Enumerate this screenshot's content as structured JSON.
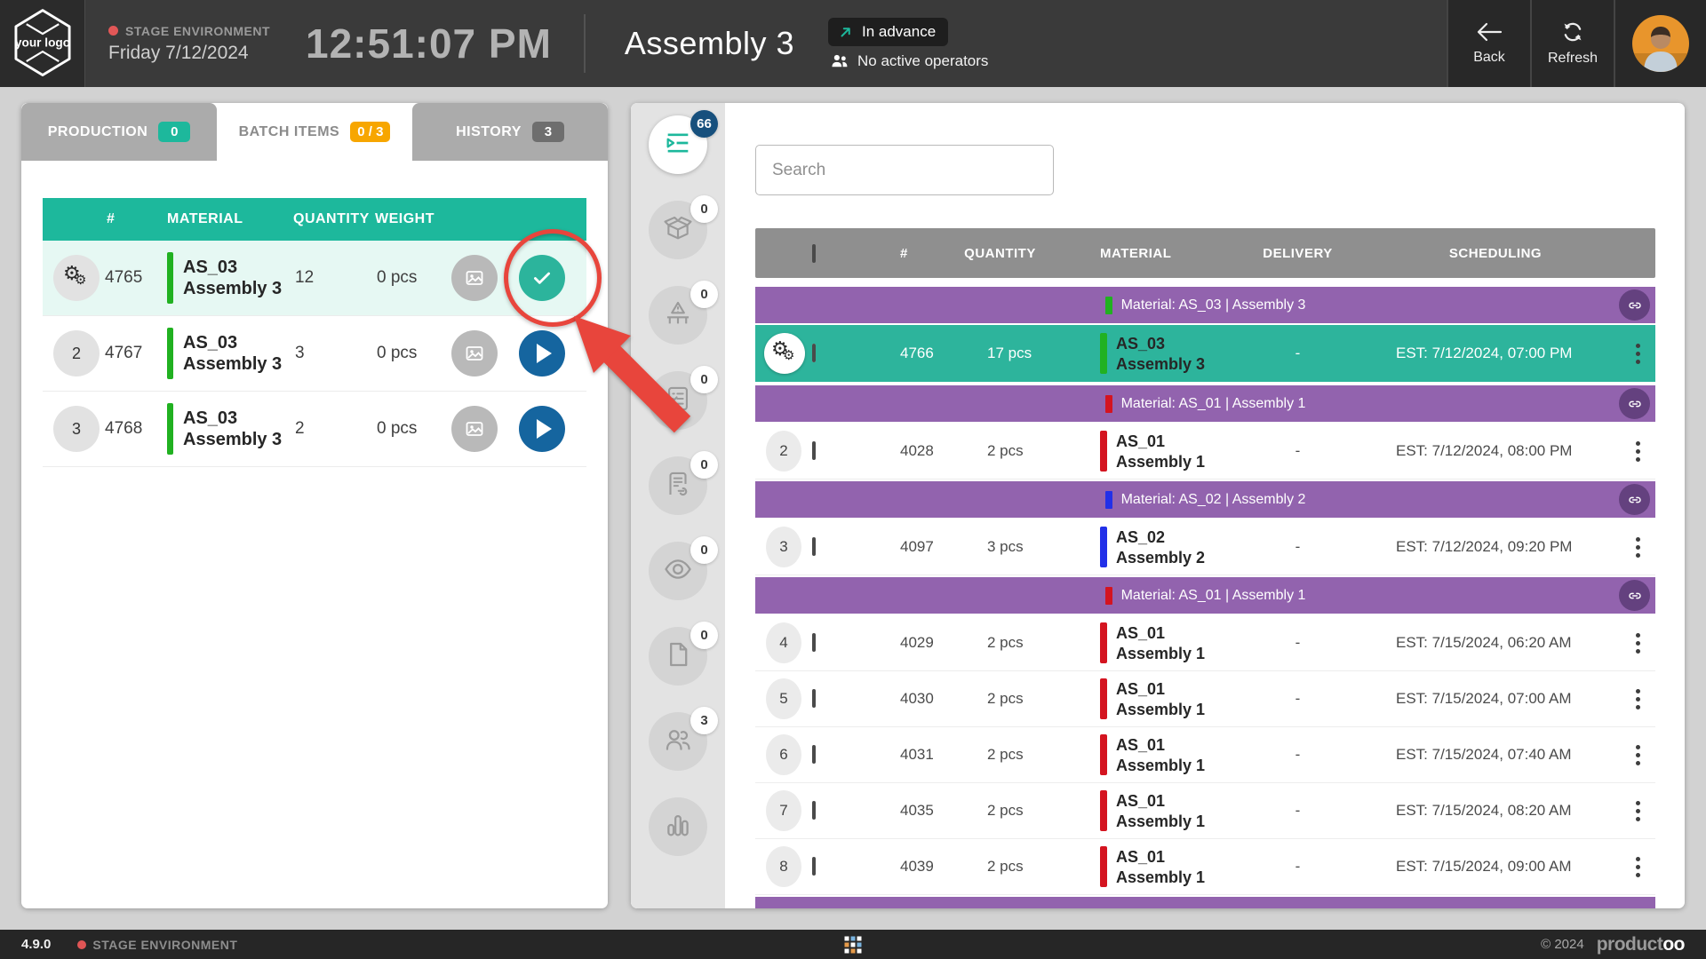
{
  "header": {
    "logo_text": "your logo",
    "environment_label": "STAGE ENVIRONMENT",
    "date": "Friday 7/12/2024",
    "clock": "12:51:07 PM",
    "workplace_title": "Assembly 3",
    "status_badge": "In advance",
    "operators_status": "No active operators",
    "back_label": "Back",
    "refresh_label": "Refresh"
  },
  "colors": {
    "accent_teal": "#1db89c",
    "selected_row_teal": "#2db49c",
    "group_purple": "#9263ae",
    "tab_orange": "#f7a600",
    "badge_dark_blue": "#17507d",
    "play_blue": "#15659f",
    "annotation_red": "#e8453c"
  },
  "left_panel": {
    "tabs": [
      {
        "label": "PRODUCTION",
        "badge": "0",
        "badge_color": "#1db89c",
        "active": false
      },
      {
        "label": "BATCH ITEMS",
        "badge": "0 / 3",
        "badge_color": "#f7a600",
        "active": true
      },
      {
        "label": "HISTORY",
        "badge": "3",
        "badge_color": "#6e6e6e",
        "active": false
      }
    ],
    "columns": {
      "id": "#",
      "material": "MATERIAL",
      "quantity": "QUANTITY",
      "weight": "WEIGHT"
    },
    "rows": [
      {
        "badge": "gears",
        "index": "",
        "id": "4765",
        "material_code": "AS_03",
        "material_name": "Assembly 3",
        "bar_color": "#21b121",
        "quantity": "12",
        "weight": "0 pcs",
        "action": "check",
        "highlight": true
      },
      {
        "badge": "number",
        "index": "2",
        "id": "4767",
        "material_code": "AS_03",
        "material_name": "Assembly 3",
        "bar_color": "#21b121",
        "quantity": "3",
        "weight": "0 pcs",
        "action": "play",
        "highlight": false
      },
      {
        "badge": "number",
        "index": "3",
        "id": "4768",
        "material_code": "AS_03",
        "material_name": "Assembly 3",
        "bar_color": "#21b121",
        "quantity": "2",
        "weight": "0 pcs",
        "action": "play",
        "highlight": false
      }
    ]
  },
  "rail": {
    "items": [
      {
        "name": "work-queue",
        "icon": "queue",
        "badge": "66",
        "badge_style": "blue",
        "active": true
      },
      {
        "name": "packaging",
        "icon": "box",
        "badge": "0",
        "badge_style": "white",
        "active": false
      },
      {
        "name": "pallet-issues",
        "icon": "pallet",
        "badge": "0",
        "badge_style": "white",
        "active": false
      },
      {
        "name": "checklists",
        "icon": "checklist",
        "badge": "0",
        "badge_style": "white",
        "active": false
      },
      {
        "name": "document-signoff",
        "icon": "docsign",
        "badge": "0",
        "badge_style": "white",
        "active": false
      },
      {
        "name": "inspection",
        "icon": "eye",
        "badge": "0",
        "badge_style": "white",
        "active": false
      },
      {
        "name": "documents",
        "icon": "file",
        "badge": "0",
        "badge_style": "white",
        "active": false
      },
      {
        "name": "operators",
        "icon": "people",
        "badge": "3",
        "badge_style": "white",
        "active": false
      },
      {
        "name": "statistics",
        "icon": "chart",
        "badge": null,
        "badge_style": null,
        "active": false
      }
    ]
  },
  "right_panel": {
    "search_placeholder": "Search",
    "columns": {
      "id": "#",
      "quantity": "QUANTITY",
      "material": "MATERIAL",
      "delivery": "DELIVERY",
      "scheduling": "SCHEDULING"
    },
    "items": [
      {
        "type": "group",
        "label": "Material: AS_03 | Assembly 3",
        "bar_color": "#21b121"
      },
      {
        "type": "row",
        "selected": true,
        "badge": "gears",
        "index": "",
        "id": "4766",
        "quantity": "17 pcs",
        "material_code": "AS_03",
        "material_name": "Assembly 3",
        "bar_color": "#21b121",
        "delivery": "-",
        "scheduling": "EST: 7/12/2024, 07:00 PM"
      },
      {
        "type": "group",
        "label": "Material: AS_01 | Assembly 1",
        "bar_color": "#d41420"
      },
      {
        "type": "row",
        "selected": false,
        "badge": "number",
        "index": "2",
        "id": "4028",
        "quantity": "2 pcs",
        "material_code": "AS_01",
        "material_name": "Assembly 1",
        "bar_color": "#d41420",
        "delivery": "-",
        "scheduling": "EST: 7/12/2024, 08:00 PM"
      },
      {
        "type": "group",
        "label": "Material: AS_02 | Assembly 2",
        "bar_color": "#2230e8"
      },
      {
        "type": "row",
        "selected": false,
        "badge": "number",
        "index": "3",
        "id": "4097",
        "quantity": "3 pcs",
        "material_code": "AS_02",
        "material_name": "Assembly 2",
        "bar_color": "#2230e8",
        "delivery": "-",
        "scheduling": "EST: 7/12/2024, 09:20 PM"
      },
      {
        "type": "group",
        "label": "Material: AS_01 | Assembly 1",
        "bar_color": "#d41420"
      },
      {
        "type": "row",
        "selected": false,
        "badge": "number",
        "index": "4",
        "id": "4029",
        "quantity": "2 pcs",
        "material_code": "AS_01",
        "material_name": "Assembly 1",
        "bar_color": "#d41420",
        "delivery": "-",
        "scheduling": "EST: 7/15/2024, 06:20 AM"
      },
      {
        "type": "row",
        "selected": false,
        "badge": "number",
        "index": "5",
        "id": "4030",
        "quantity": "2 pcs",
        "material_code": "AS_01",
        "material_name": "Assembly 1",
        "bar_color": "#d41420",
        "delivery": "-",
        "scheduling": "EST: 7/15/2024, 07:00 AM"
      },
      {
        "type": "row",
        "selected": false,
        "badge": "number",
        "index": "6",
        "id": "4031",
        "quantity": "2 pcs",
        "material_code": "AS_01",
        "material_name": "Assembly 1",
        "bar_color": "#d41420",
        "delivery": "-",
        "scheduling": "EST: 7/15/2024, 07:40 AM"
      },
      {
        "type": "row",
        "selected": false,
        "badge": "number",
        "index": "7",
        "id": "4035",
        "quantity": "2 pcs",
        "material_code": "AS_01",
        "material_name": "Assembly 1",
        "bar_color": "#d41420",
        "delivery": "-",
        "scheduling": "EST: 7/15/2024, 08:20 AM"
      },
      {
        "type": "row",
        "selected": false,
        "badge": "number",
        "index": "8",
        "id": "4039",
        "quantity": "2 pcs",
        "material_code": "AS_01",
        "material_name": "Assembly 1",
        "bar_color": "#d41420",
        "delivery": "-",
        "scheduling": "EST: 7/15/2024, 09:00 AM"
      },
      {
        "type": "group",
        "label": "",
        "bar_color": null,
        "partial": true
      }
    ]
  },
  "footer": {
    "version": "4.9.0",
    "environment_label": "STAGE ENVIRONMENT",
    "copyright": "© 2024",
    "brand_part1": "product",
    "brand_part2": "oo"
  }
}
